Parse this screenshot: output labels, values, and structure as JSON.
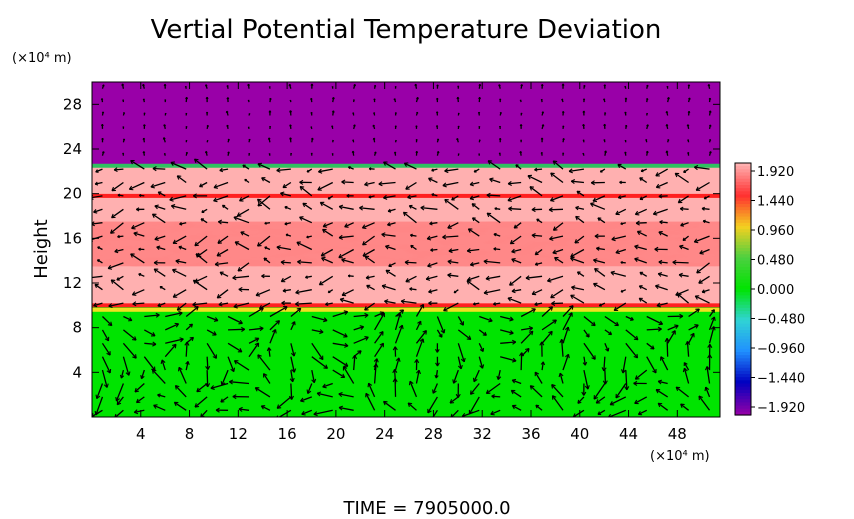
{
  "chart_data": {
    "type": "heatmap",
    "title": "Vertial Potential Temperature Deviation",
    "ylabel": "Height",
    "y_unit_label": "(×10⁴ m)",
    "x_unit_label": "(×10⁴ m)",
    "xlim": [
      0,
      51.5
    ],
    "ylim": [
      0,
      30
    ],
    "x_ticks": [
      4,
      8,
      12,
      16,
      20,
      24,
      28,
      32,
      36,
      40,
      44,
      48
    ],
    "y_ticks": [
      4,
      8,
      12,
      16,
      20,
      24,
      28
    ],
    "colorbar": {
      "ticks": [
        "1.920",
        "1.440",
        "0.960",
        "0.480",
        "0.000",
        "-0.480",
        "-0.960",
        "-1.440",
        "-1.920"
      ],
      "colors": [
        "#ffb0b0",
        "#ff3030",
        "#f4d020",
        "#4cd040",
        "#00e400",
        "#30d4d4",
        "#2090ff",
        "#0000c0",
        "#9000a8"
      ]
    },
    "layers": [
      {
        "y_range": [
          22.5,
          30
        ],
        "value": -1.92,
        "color": "#9900a8"
      },
      {
        "y_range": [
          10,
          22.5
        ],
        "value": 1.92,
        "color": "#ffb0b0"
      },
      {
        "y_range": [
          0,
          10
        ],
        "value": 0.0,
        "color": "#00e400"
      }
    ],
    "features": [
      {
        "type": "band",
        "y_range": [
          13.5,
          17.5
        ],
        "value": 1.44,
        "color": "#ff4040"
      },
      {
        "type": "line",
        "y": 10.0,
        "value": 1.44,
        "color": "#ff2020"
      },
      {
        "type": "line",
        "y": 9.6,
        "value": 0.96,
        "color": "#f0e020"
      },
      {
        "type": "line",
        "y": 19.8,
        "value": 1.44,
        "color": "#ff2020"
      },
      {
        "type": "line",
        "y": 22.5,
        "value": 0.48,
        "color": "#30c060"
      }
    ],
    "vector_field": "wind arrows on regular grid"
  },
  "footer": {
    "time_label": "TIME  =  7905000.0"
  }
}
